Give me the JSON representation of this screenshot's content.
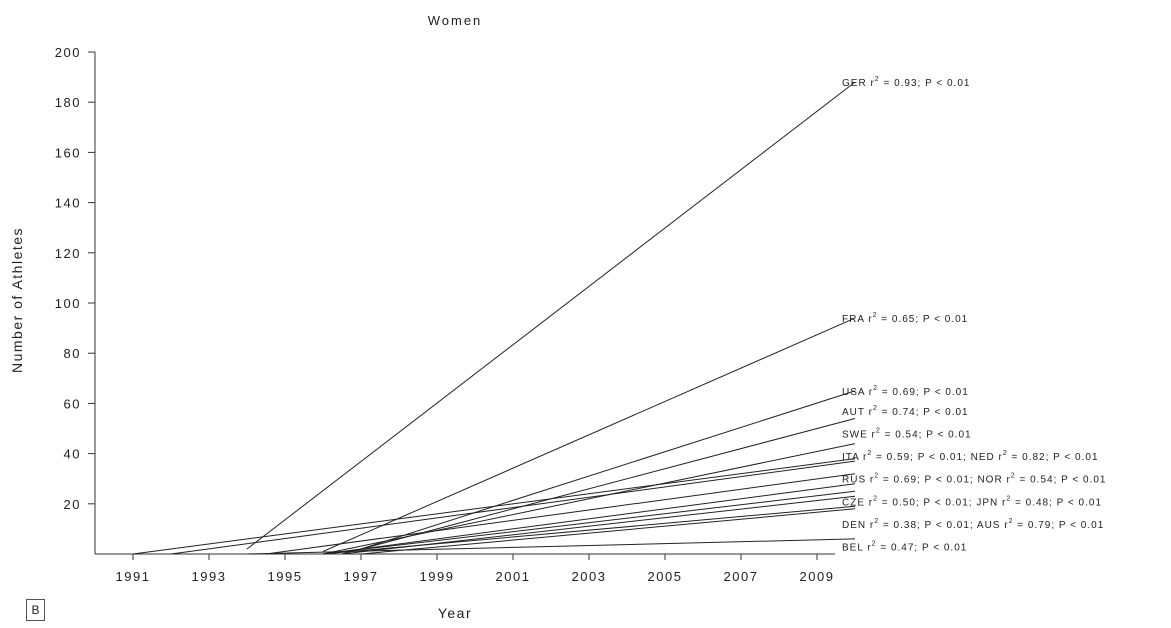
{
  "chart_data": {
    "type": "line",
    "title": "Women",
    "xlabel": "Year",
    "ylabel": "Number of Athletes",
    "xlim": [
      1990,
      2010
    ],
    "ylim": [
      0,
      200
    ],
    "x_ticks": [
      1991,
      1993,
      1995,
      1997,
      1999,
      2001,
      2003,
      2005,
      2007,
      2009
    ],
    "y_ticks": [
      20,
      40,
      60,
      80,
      100,
      120,
      140,
      160,
      180,
      200
    ],
    "grid": false,
    "panel_label": "B",
    "series": [
      {
        "name": "GER",
        "x": [
          1994,
          2010
        ],
        "y": [
          2,
          188
        ]
      },
      {
        "name": "FRA",
        "x": [
          1996,
          2010
        ],
        "y": [
          1,
          94
        ]
      },
      {
        "name": "USA",
        "x": [
          1997,
          2010
        ],
        "y": [
          2,
          65
        ]
      },
      {
        "name": "AUT",
        "x": [
          1996.5,
          2010
        ],
        "y": [
          0,
          54
        ]
      },
      {
        "name": "SWE",
        "x": [
          1996,
          2010
        ],
        "y": [
          0,
          44
        ]
      },
      {
        "name": "ITA",
        "x": [
          1991,
          2010
        ],
        "y": [
          0,
          38
        ]
      },
      {
        "name": "NED",
        "x": [
          1992,
          2010
        ],
        "y": [
          0,
          37
        ]
      },
      {
        "name": "RUS",
        "x": [
          1994.5,
          2010
        ],
        "y": [
          0,
          32
        ]
      },
      {
        "name": "NOR",
        "x": [
          1996,
          2010
        ],
        "y": [
          0,
          28
        ]
      },
      {
        "name": "CZE",
        "x": [
          1996,
          2010
        ],
        "y": [
          0,
          25
        ]
      },
      {
        "name": "JPN",
        "x": [
          1996.5,
          2010
        ],
        "y": [
          0,
          23
        ]
      },
      {
        "name": "DEN",
        "x": [
          1996,
          2010
        ],
        "y": [
          0,
          19
        ]
      },
      {
        "name": "AUS",
        "x": [
          1997,
          2010
        ],
        "y": [
          0,
          18
        ]
      },
      {
        "name": "BEL",
        "x": [
          1994,
          2010
        ],
        "y": [
          0,
          6
        ]
      }
    ],
    "annotations": [
      {
        "text": "GER r",
        "stat": " = 0.93; P < 0.01",
        "y": 188
      },
      {
        "text": "FRA r",
        "stat": " = 0.65; P < 0.01",
        "y": 94
      },
      {
        "text": "USA r",
        "stat": " = 0.69; P < 0.01",
        "y": 65
      },
      {
        "text": "AUT r",
        "stat": " = 0.74; P < 0.01",
        "y": 57
      },
      {
        "text": "SWE r",
        "stat": " = 0.54; P < 0.01",
        "y": 48
      },
      {
        "text": "ITA r",
        "stat": " = 0.59; P < 0.01; NED r",
        "stat2": " = 0.82; P < 0.01",
        "y": 39
      },
      {
        "text": "RUS r",
        "stat": " = 0.69; P < 0.01; NOR r",
        "stat2": " = 0.54; P < 0.01",
        "y": 30
      },
      {
        "text": "CZE r",
        "stat": " = 0.50; P < 0.01; JPN r",
        "stat2": " = 0.48; P < 0.01",
        "y": 21
      },
      {
        "text": "DEN r",
        "stat": " = 0.38; P < 0.01; AUS r",
        "stat2": " = 0.79; P < 0.01",
        "y": 12
      },
      {
        "text": "BEL r",
        "stat": " = 0.47; P < 0.01",
        "y": 3
      }
    ]
  }
}
